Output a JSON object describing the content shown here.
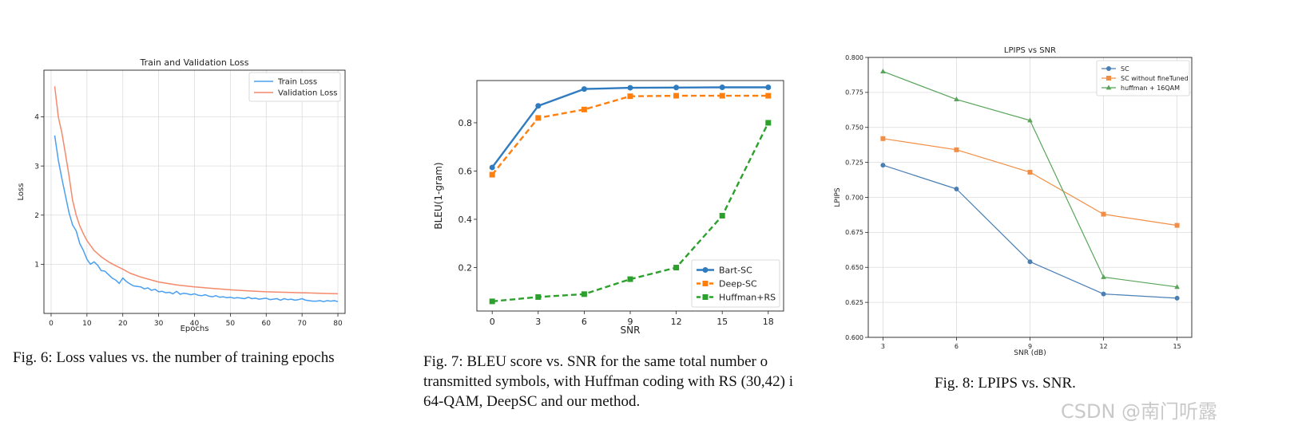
{
  "chart_data": [
    {
      "type": "line",
      "title": "Train and Validation Loss",
      "xlabel": "Epochs",
      "ylabel": "Loss",
      "xlim": [
        -2,
        82
      ],
      "ylim": [
        0.0,
        4.95
      ],
      "xticks": [
        0,
        10,
        20,
        30,
        40,
        50,
        60,
        70,
        80
      ],
      "yticks": [
        1,
        2,
        3,
        4
      ],
      "grid": true,
      "legend": "top-right",
      "series": [
        {
          "name": "Train Loss",
          "color": "#4a9ff0",
          "x": [
            1,
            2,
            3,
            4,
            5,
            6,
            7,
            8,
            9,
            10,
            11,
            12,
            13,
            14,
            15,
            16,
            17,
            18,
            19,
            20,
            21,
            22,
            23,
            24,
            25,
            26,
            27,
            28,
            29,
            30,
            31,
            32,
            33,
            34,
            35,
            36,
            37,
            38,
            39,
            40,
            41,
            42,
            43,
            44,
            45,
            46,
            47,
            48,
            49,
            50,
            51,
            52,
            53,
            54,
            55,
            56,
            57,
            58,
            59,
            60,
            61,
            62,
            63,
            64,
            65,
            66,
            67,
            68,
            69,
            70,
            71,
            72,
            73,
            74,
            75,
            76,
            77,
            78,
            79,
            80
          ],
          "values": [
            3.62,
            3.12,
            2.75,
            2.4,
            2.05,
            1.8,
            1.68,
            1.42,
            1.28,
            1.1,
            1.0,
            1.05,
            0.98,
            0.87,
            0.86,
            0.79,
            0.72,
            0.68,
            0.61,
            0.72,
            0.65,
            0.6,
            0.56,
            0.55,
            0.54,
            0.5,
            0.52,
            0.47,
            0.49,
            0.44,
            0.45,
            0.42,
            0.43,
            0.4,
            0.45,
            0.39,
            0.41,
            0.4,
            0.38,
            0.4,
            0.37,
            0.36,
            0.38,
            0.35,
            0.34,
            0.36,
            0.33,
            0.34,
            0.32,
            0.33,
            0.31,
            0.32,
            0.31,
            0.3,
            0.33,
            0.3,
            0.31,
            0.29,
            0.3,
            0.31,
            0.28,
            0.29,
            0.3,
            0.27,
            0.3,
            0.28,
            0.29,
            0.27,
            0.28,
            0.3,
            0.27,
            0.26,
            0.25,
            0.25,
            0.26,
            0.24,
            0.26,
            0.25,
            0.26,
            0.24
          ]
        },
        {
          "name": "Validation Loss",
          "color": "#f4896b",
          "x": [
            1,
            2,
            3,
            4,
            5,
            6,
            7,
            8,
            9,
            10,
            12,
            14,
            16,
            18,
            20,
            22,
            25,
            28,
            30,
            35,
            40,
            45,
            50,
            55,
            60,
            65,
            70,
            75,
            80
          ],
          "values": [
            4.62,
            4.0,
            3.68,
            3.25,
            2.8,
            2.3,
            2.0,
            1.78,
            1.62,
            1.48,
            1.28,
            1.15,
            1.05,
            0.97,
            0.9,
            0.82,
            0.74,
            0.68,
            0.64,
            0.58,
            0.54,
            0.51,
            0.48,
            0.46,
            0.44,
            0.43,
            0.42,
            0.41,
            0.4
          ]
        }
      ],
      "caption": "Fig. 6: Loss values vs. the number of training epochs"
    },
    {
      "type": "line",
      "title": "",
      "xlabel": "SNR",
      "ylabel": "BLEU(1-gram)",
      "categories": [
        "0",
        "3",
        "6",
        "9",
        "12",
        "15",
        "18"
      ],
      "x": [
        0,
        3,
        6,
        9,
        12,
        15,
        18
      ],
      "xlim": [
        -1,
        19
      ],
      "ylim": [
        0.02,
        0.975
      ],
      "yticks": [
        "0.2",
        "0.4",
        "0.6",
        "0.8"
      ],
      "grid": false,
      "legend": "bottom-right",
      "series": [
        {
          "name": "Bart-SC",
          "color": "#2f7bbf",
          "marker": "circle",
          "dash": "solid",
          "values": [
            0.615,
            0.87,
            0.94,
            0.945,
            0.946,
            0.947,
            0.947
          ]
        },
        {
          "name": "Deep-SC",
          "color": "#ff7f0e",
          "marker": "square",
          "dash": "dashed",
          "values": [
            0.585,
            0.82,
            0.855,
            0.91,
            0.912,
            0.912,
            0.912
          ]
        },
        {
          "name": "Huffman+RS",
          "color": "#2ca02c",
          "marker": "square",
          "dash": "dashed",
          "values": [
            0.06,
            0.078,
            0.09,
            0.152,
            0.2,
            0.415,
            0.8
          ]
        }
      ],
      "caption": "Fig. 7: BLEU score vs. SNR for the same total number o transmitted symbols, with Huffman coding with RS (30,42) i 64-QAM, DeepSC and our method."
    },
    {
      "type": "line",
      "title": "LPIPS vs SNR",
      "xlabel": "SNR (dB)",
      "ylabel": "LPIPS",
      "categories": [
        "3",
        "6",
        "9",
        "12",
        "15"
      ],
      "x": [
        3,
        6,
        9,
        12,
        15
      ],
      "xlim": [
        2.4,
        15.6
      ],
      "ylim": [
        0.6,
        0.8
      ],
      "yticks": [
        "0.600",
        "0.625",
        "0.650",
        "0.675",
        "0.700",
        "0.725",
        "0.750",
        "0.775",
        "0.800"
      ],
      "grid": true,
      "legend": "top-right",
      "series": [
        {
          "name": "SC",
          "color": "#4a7fb5",
          "marker": "circle",
          "values": [
            0.723,
            0.706,
            0.654,
            0.631,
            0.628
          ]
        },
        {
          "name": "SC without fineTuned",
          "color": "#f28e44",
          "marker": "square",
          "values": [
            0.742,
            0.734,
            0.718,
            0.688,
            0.68
          ]
        },
        {
          "name": "huffman + 16QAM",
          "color": "#58a55a",
          "marker": "triangle",
          "values": [
            0.79,
            0.77,
            0.755,
            0.643,
            0.636
          ]
        }
      ],
      "caption": "Fig. 8: LPIPS vs. SNR."
    }
  ],
  "captions": {
    "fig6": "Fig. 6: Loss values vs. the number of training epochs",
    "fig7": [
      "Fig. 7: BLEU score vs. SNR for the same total number o",
      "transmitted symbols, with Huffman coding with RS (30,42) i",
      "64-QAM, DeepSC and our method."
    ],
    "fig8": "Fig. 8: LPIPS vs. SNR."
  },
  "watermark": "CSDN @南门听露"
}
